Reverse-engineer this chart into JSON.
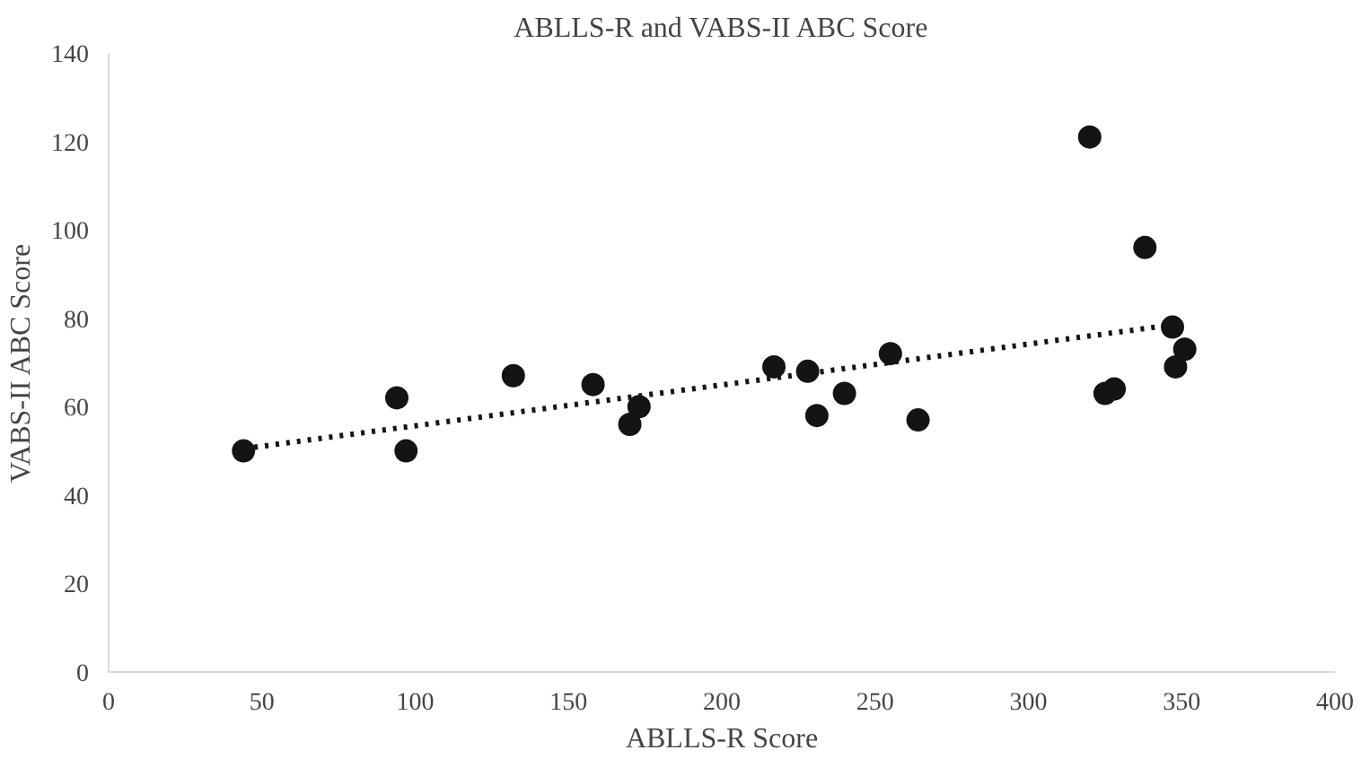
{
  "chart_data": {
    "type": "scatter",
    "title": "ABLLS-R and VABS-II ABC Score",
    "xlabel": "ABLLS-R Score",
    "ylabel": "VABS-II ABC Score",
    "xlim": [
      0,
      400
    ],
    "xticks": [
      0,
      50,
      100,
      150,
      200,
      250,
      300,
      350,
      400
    ],
    "ylim": [
      0,
      140
    ],
    "yticks": [
      0,
      20,
      40,
      60,
      80,
      100,
      120,
      140
    ],
    "series": [
      {
        "marker": "circle",
        "color": "#141414",
        "x": [
          44,
          94,
          97,
          132,
          158,
          170,
          173,
          217,
          228,
          231,
          240,
          255,
          264,
          320,
          325,
          328,
          338,
          347,
          348,
          351
        ],
        "values": [
          50,
          62,
          50,
          67,
          65,
          56,
          60,
          69,
          68,
          58,
          63,
          72,
          57,
          121,
          63,
          64,
          96,
          78,
          69,
          73
        ]
      },
      {
        "type": "line",
        "marker": "none",
        "color": "#141414",
        "line_style": "dotted",
        "x": [
          44,
          347
        ],
        "values": [
          50.5,
          78.5
        ]
      }
    ]
  }
}
